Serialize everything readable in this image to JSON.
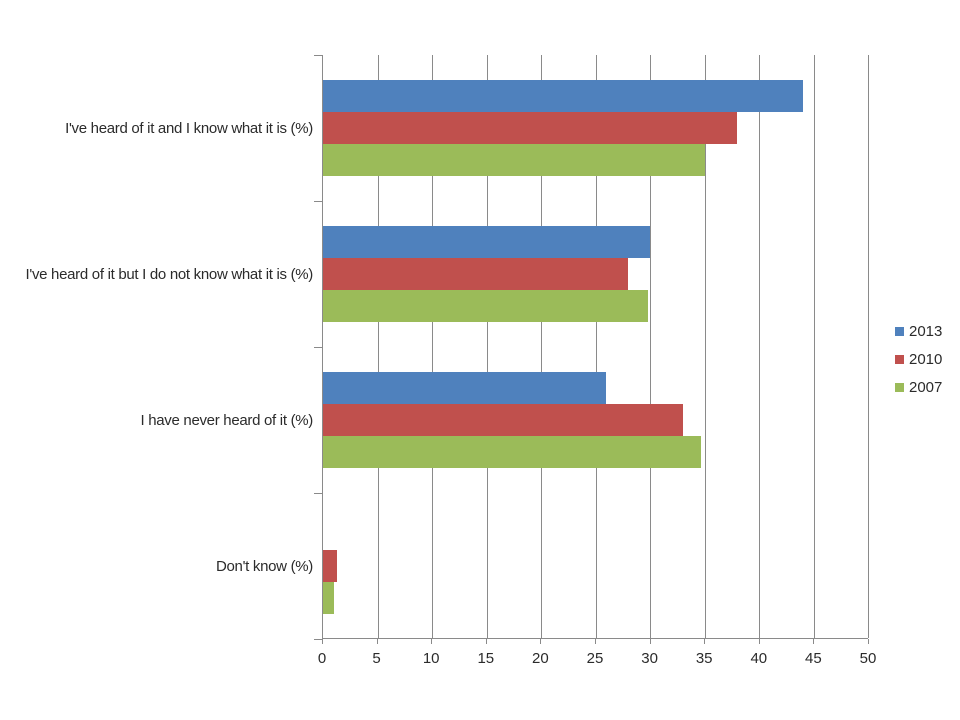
{
  "chart_data": {
    "type": "bar",
    "orientation": "horizontal",
    "title": "",
    "categories": [
      "I've heard of it and I know what it is (%)",
      "I've heard of it but I do not know what it is (%)",
      "I have never heard of it (%)",
      "Don't know (%)"
    ],
    "series": [
      {
        "name": "2013",
        "color": "#4f81bd",
        "values": [
          44,
          30,
          26,
          0
        ]
      },
      {
        "name": "2010",
        "color": "#c0504d",
        "values": [
          38,
          28,
          33,
          1.3
        ]
      },
      {
        "name": "2007",
        "color": "#9bbb59",
        "values": [
          35,
          29.8,
          34.7,
          1
        ]
      }
    ],
    "xlim": [
      0,
      50
    ],
    "x_ticks": [
      0,
      5,
      10,
      15,
      20,
      25,
      30,
      35,
      40,
      45,
      50
    ],
    "xlabel": "",
    "ylabel": "",
    "grid": "vertical gridlines at every 5 units",
    "legend_position": "right",
    "legend_entries": [
      "2013",
      "2010",
      "2007"
    ]
  },
  "colors": {
    "background": "#ffffff",
    "axis_line": "#8a8a8a",
    "gridline": "#8a8a8a",
    "text": "#2b2b2b",
    "series_2013": "#4f81bd",
    "series_2010": "#c0504d",
    "series_2007": "#9bbb59"
  }
}
